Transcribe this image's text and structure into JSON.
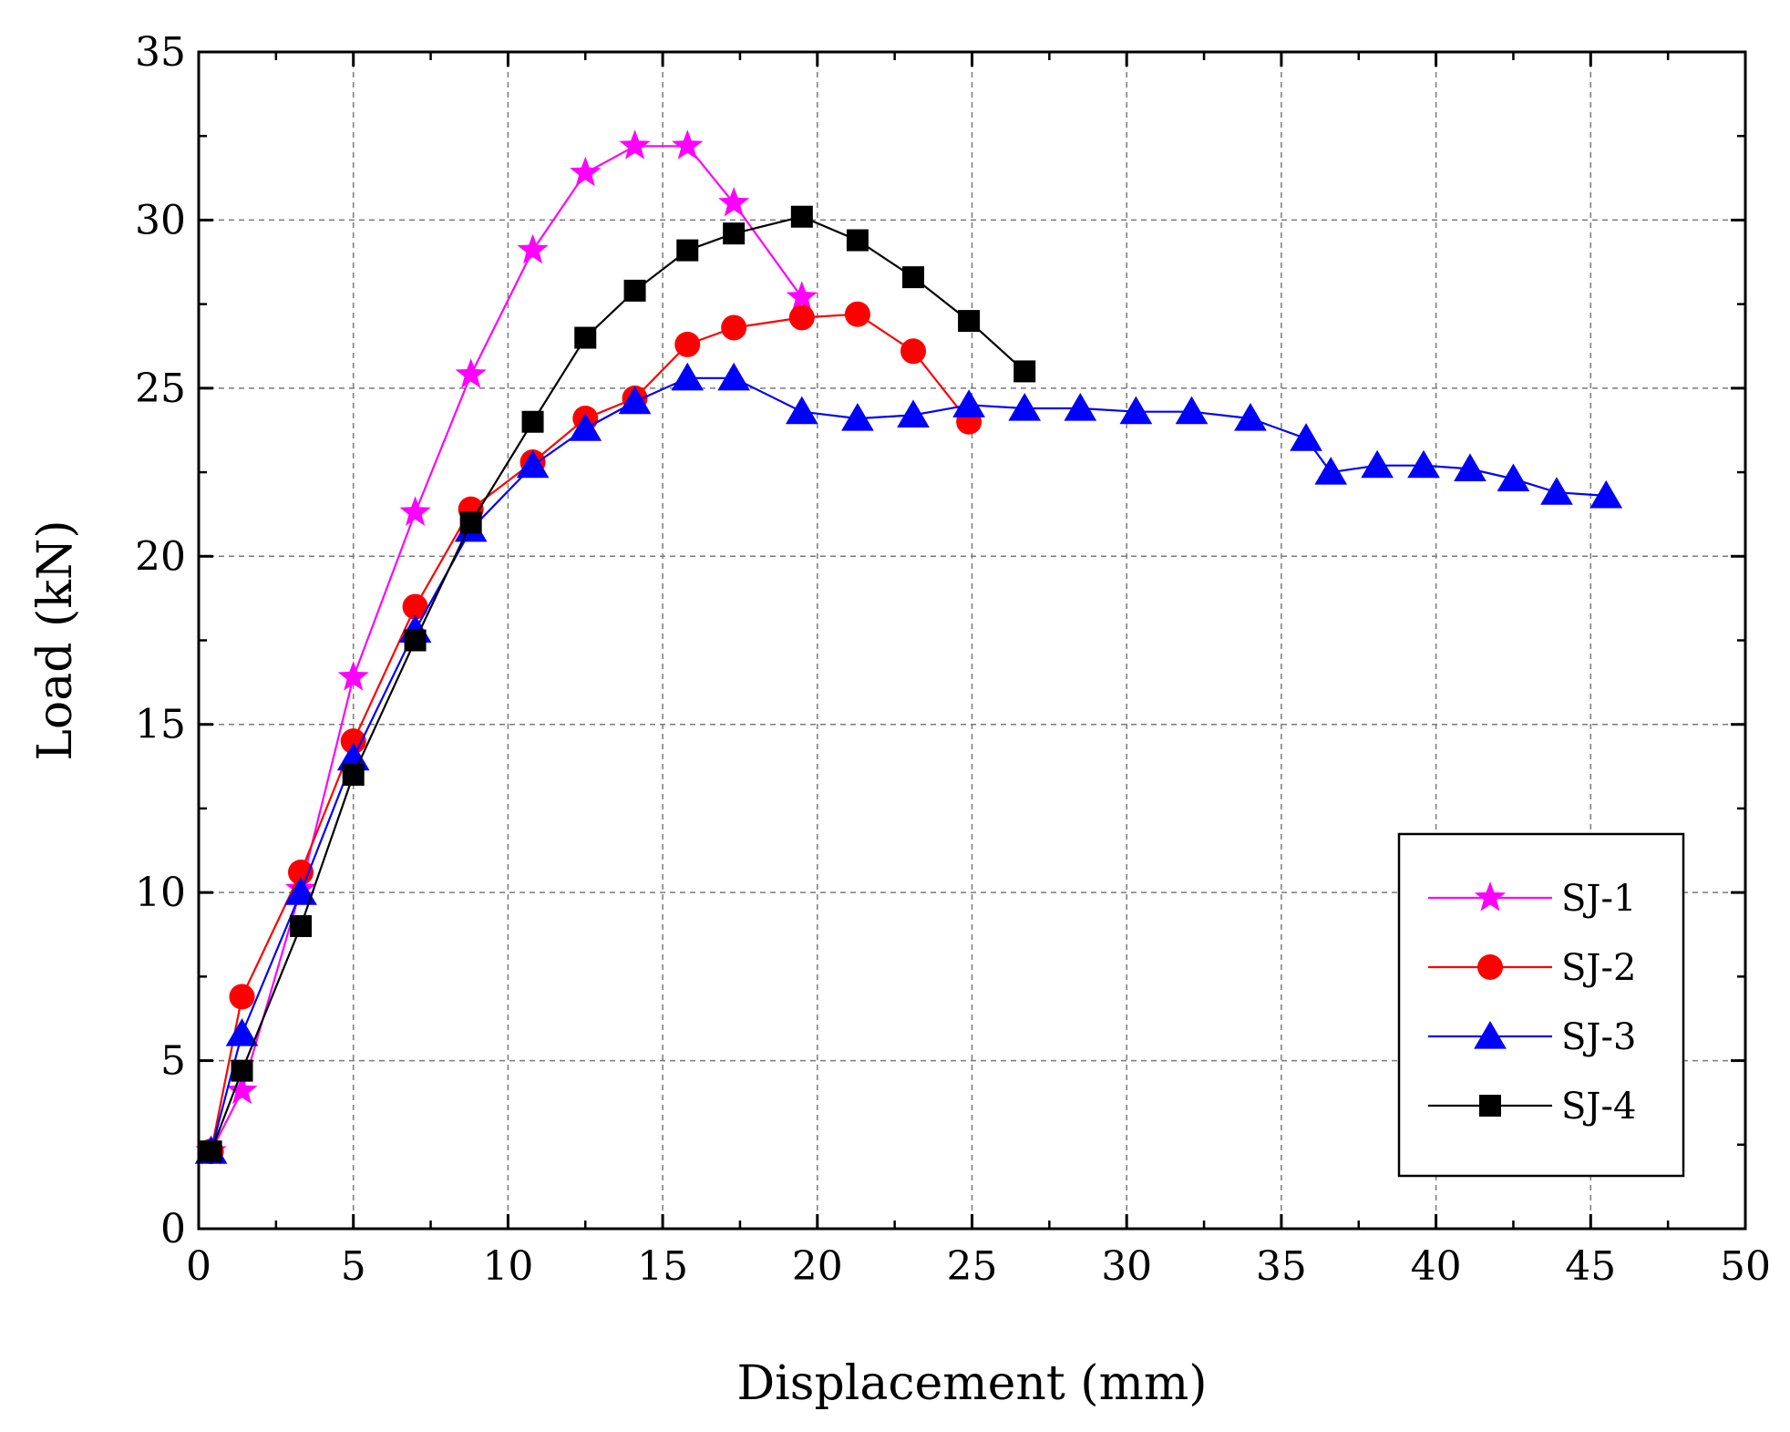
{
  "chart_data": {
    "type": "line",
    "title": "",
    "xlabel": "Displacement  (mm)",
    "ylabel": "Load  (kN)",
    "xlim": [
      0,
      50
    ],
    "ylim": [
      0,
      35
    ],
    "xticks": [
      0,
      5,
      10,
      15,
      20,
      25,
      30,
      35,
      40,
      45,
      50
    ],
    "yticks": [
      0,
      5,
      10,
      15,
      20,
      25,
      30,
      35
    ],
    "grid": true,
    "legend_position": "bottom-right",
    "series": [
      {
        "name": "SJ-1",
        "color": "#ff00ff",
        "marker": "star",
        "x": [
          0.4,
          1.4,
          3.3,
          5.0,
          7.0,
          8.8,
          10.8,
          12.5,
          14.1,
          15.8,
          17.3,
          19.5
        ],
        "y": [
          2.3,
          4.1,
          10.1,
          16.4,
          21.3,
          25.4,
          29.1,
          31.4,
          32.2,
          32.2,
          30.5,
          27.7
        ]
      },
      {
        "name": "SJ-2",
        "color": "#ff0000",
        "marker": "circle",
        "x": [
          0.4,
          1.4,
          3.3,
          5.0,
          7.0,
          8.8,
          10.8,
          12.5,
          14.1,
          15.8,
          17.3,
          19.5,
          21.3,
          23.1,
          24.9
        ],
        "y": [
          2.3,
          6.9,
          10.6,
          14.5,
          18.5,
          21.4,
          22.8,
          24.1,
          24.7,
          26.3,
          26.8,
          27.1,
          27.2,
          26.1,
          24.0
        ]
      },
      {
        "name": "SJ-3",
        "color": "#0000ff",
        "marker": "triangle",
        "x": [
          0.4,
          1.4,
          3.3,
          5.0,
          7.0,
          8.8,
          10.8,
          12.5,
          14.1,
          15.8,
          17.3,
          19.5,
          21.3,
          23.1,
          24.9,
          26.7,
          28.5,
          30.3,
          32.1,
          34.0,
          35.8,
          36.6,
          38.1,
          39.6,
          41.1,
          42.5,
          43.9,
          45.5
        ],
        "y": [
          2.3,
          5.8,
          10.0,
          14.0,
          17.8,
          20.8,
          22.7,
          23.8,
          24.6,
          25.3,
          25.3,
          24.3,
          24.1,
          24.2,
          24.5,
          24.4,
          24.4,
          24.3,
          24.3,
          24.1,
          23.5,
          22.5,
          22.7,
          22.7,
          22.6,
          22.3,
          21.9,
          21.8
        ]
      },
      {
        "name": "SJ-4",
        "color": "#000000",
        "marker": "square",
        "x": [
          0.4,
          1.4,
          3.3,
          5.0,
          7.0,
          8.8,
          10.8,
          12.5,
          14.1,
          15.8,
          17.3,
          19.5,
          21.3,
          23.1,
          24.9,
          26.7
        ],
        "y": [
          2.3,
          4.7,
          9.0,
          13.5,
          17.5,
          21.0,
          24.0,
          26.5,
          27.9,
          29.1,
          29.6,
          30.1,
          29.4,
          28.3,
          27.0,
          25.5
        ]
      }
    ]
  }
}
